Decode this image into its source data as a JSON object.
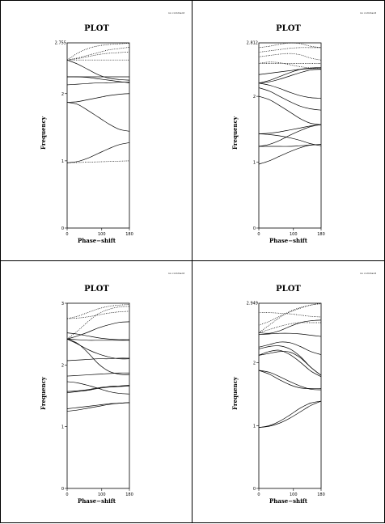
{
  "colors": {
    "ink": "#000000",
    "paper": "#ffffff"
  },
  "chart_data": [
    {
      "type": "line",
      "title": "PLOT",
      "comment": "no comment",
      "xlabel": "Phase−shift",
      "ylabel": "Frequency",
      "xlim": [
        0,
        180
      ],
      "ylim": [
        0,
        2.755
      ],
      "xticks": [
        "0",
        "100",
        "180"
      ],
      "yticks": [
        "0",
        "1",
        "2"
      ],
      "ytop_label": "2.755",
      "x": [
        0,
        30,
        60,
        90,
        120,
        150,
        180
      ],
      "series": [
        {
          "values": [
            0.97,
            0.99,
            1.04,
            1.11,
            1.18,
            1.24,
            1.27
          ],
          "dotted": false
        },
        {
          "values": [
            0.97,
            0.975,
            0.98,
            0.985,
            0.99,
            0.995,
            1.0
          ],
          "dotted": true
        },
        {
          "values": [
            1.87,
            1.84,
            1.75,
            1.65,
            1.55,
            1.47,
            1.44
          ],
          "dotted": false
        },
        {
          "values": [
            1.87,
            1.88,
            1.91,
            1.94,
            1.97,
            1.99,
            2.0
          ],
          "dotted": false
        },
        {
          "values": [
            2.13,
            2.14,
            2.15,
            2.16,
            2.16,
            2.17,
            2.17
          ],
          "dotted": false
        },
        {
          "values": [
            2.25,
            2.25,
            2.24,
            2.22,
            2.2,
            2.18,
            2.16
          ],
          "dotted": false
        },
        {
          "values": [
            2.25,
            2.25,
            2.25,
            2.25,
            2.25,
            2.25,
            2.25
          ],
          "dotted": false
        },
        {
          "values": [
            2.5,
            2.44,
            2.36,
            2.28,
            2.23,
            2.21,
            2.2
          ],
          "dotted": false
        },
        {
          "values": [
            2.5,
            2.5,
            2.5,
            2.5,
            2.5,
            2.5,
            2.5
          ],
          "dotted": true
        },
        {
          "values": [
            2.5,
            2.52,
            2.55,
            2.58,
            2.6,
            2.61,
            2.62
          ],
          "dotted": true
        },
        {
          "values": [
            2.5,
            2.53,
            2.57,
            2.61,
            2.65,
            2.67,
            2.69
          ],
          "dotted": true
        },
        {
          "values": [
            2.5,
            2.6,
            2.67,
            2.71,
            2.73,
            2.74,
            2.75
          ],
          "dotted": true
        }
      ]
    },
    {
      "type": "line",
      "title": "PLOT",
      "comment": "no comment",
      "xlabel": "Phase−shift",
      "ylabel": "Frequency",
      "xlim": [
        0,
        180
      ],
      "ylim": [
        0,
        2.812
      ],
      "xticks": [
        "0",
        "100",
        "180"
      ],
      "yticks": [
        "0",
        "1",
        "2"
      ],
      "ytop_label": "2.812",
      "x": [
        0,
        30,
        60,
        90,
        120,
        150,
        180
      ],
      "series": [
        {
          "values": [
            0.97,
            1.02,
            1.09,
            1.16,
            1.22,
            1.26,
            1.27
          ],
          "dotted": false
        },
        {
          "values": [
            1.24,
            1.24,
            1.24,
            1.24,
            1.25,
            1.26,
            1.27
          ],
          "dotted": false
        },
        {
          "values": [
            1.24,
            1.27,
            1.33,
            1.41,
            1.48,
            1.54,
            1.57
          ],
          "dotted": false
        },
        {
          "values": [
            1.43,
            1.42,
            1.4,
            1.37,
            1.33,
            1.28,
            1.25
          ],
          "dotted": false
        },
        {
          "values": [
            1.43,
            1.44,
            1.46,
            1.49,
            1.52,
            1.55,
            1.57
          ],
          "dotted": false
        },
        {
          "values": [
            2.0,
            1.95,
            1.86,
            1.76,
            1.66,
            1.59,
            1.57
          ],
          "dotted": false
        },
        {
          "values": [
            2.13,
            2.08,
            2.0,
            1.92,
            1.85,
            1.81,
            1.79
          ],
          "dotted": false
        },
        {
          "values": [
            2.2,
            2.17,
            2.12,
            2.06,
            2.01,
            1.98,
            1.97
          ],
          "dotted": false
        },
        {
          "values": [
            2.2,
            2.24,
            2.3,
            2.36,
            2.41,
            2.43,
            2.44
          ],
          "dotted": false
        },
        {
          "values": [
            2.2,
            2.22,
            2.26,
            2.31,
            2.36,
            2.4,
            2.41
          ],
          "dotted": false
        },
        {
          "values": [
            2.33,
            2.35,
            2.37,
            2.39,
            2.41,
            2.42,
            2.42
          ],
          "dotted": false
        },
        {
          "values": [
            2.5,
            2.52,
            2.51,
            2.48,
            2.45,
            2.43,
            2.42
          ],
          "dotted": true
        },
        {
          "values": [
            2.5,
            2.5,
            2.5,
            2.5,
            2.5,
            2.5,
            2.5
          ],
          "dotted": true
        },
        {
          "values": [
            2.6,
            2.62,
            2.64,
            2.65,
            2.63,
            2.58,
            2.55
          ],
          "dotted": true
        },
        {
          "values": [
            2.67,
            2.69,
            2.71,
            2.73,
            2.74,
            2.74,
            2.74
          ],
          "dotted": true
        },
        {
          "values": [
            2.74,
            2.76,
            2.79,
            2.81,
            2.8,
            2.76,
            2.74
          ],
          "dotted": true
        }
      ]
    },
    {
      "type": "line",
      "title": "PLOT",
      "comment": "no comment",
      "xlabel": "Phase−shift",
      "ylabel": "Frequency",
      "xlim": [
        0,
        180
      ],
      "ylim": [
        0,
        3
      ],
      "xticks": [
        "0",
        "100",
        "180"
      ],
      "yticks": [
        "0",
        "1",
        "2",
        "3"
      ],
      "ytop_label": "",
      "x": [
        0,
        30,
        60,
        90,
        120,
        150,
        180
      ],
      "series": [
        {
          "values": [
            1.25,
            1.27,
            1.3,
            1.33,
            1.36,
            1.38,
            1.39
          ],
          "dotted": false
        },
        {
          "values": [
            1.29,
            1.31,
            1.33,
            1.35,
            1.37,
            1.38,
            1.39
          ],
          "dotted": false
        },
        {
          "values": [
            1.55,
            1.57,
            1.59,
            1.62,
            1.64,
            1.65,
            1.66
          ],
          "dotted": false
        },
        {
          "values": [
            1.57,
            1.58,
            1.6,
            1.63,
            1.65,
            1.66,
            1.67
          ],
          "dotted": false
        },
        {
          "values": [
            1.73,
            1.71,
            1.67,
            1.62,
            1.57,
            1.54,
            1.53
          ],
          "dotted": false
        },
        {
          "values": [
            1.82,
            1.83,
            1.84,
            1.85,
            1.86,
            1.87,
            1.87
          ],
          "dotted": false
        },
        {
          "values": [
            2.07,
            2.08,
            2.09,
            2.1,
            2.1,
            2.11,
            2.11
          ],
          "dotted": false
        },
        {
          "values": [
            2.42,
            2.35,
            2.2,
            2.02,
            1.9,
            1.85,
            1.84
          ],
          "dotted": false
        },
        {
          "values": [
            2.42,
            2.34,
            2.25,
            2.18,
            2.13,
            2.1,
            2.1
          ],
          "dotted": false
        },
        {
          "values": [
            2.42,
            2.41,
            2.4,
            2.4,
            2.4,
            2.4,
            2.4
          ],
          "dotted": false
        },
        {
          "values": [
            2.42,
            2.47,
            2.53,
            2.6,
            2.65,
            2.69,
            2.7
          ],
          "dotted": false
        },
        {
          "values": [
            2.52,
            2.5,
            2.47,
            2.44,
            2.42,
            2.41,
            2.41
          ],
          "dotted": false
        },
        {
          "values": [
            2.75,
            2.76,
            2.78,
            2.81,
            2.84,
            2.86,
            2.87
          ],
          "dotted": true
        },
        {
          "values": [
            2.75,
            2.79,
            2.85,
            2.91,
            2.95,
            2.97,
            2.98
          ],
          "dotted": true
        },
        {
          "values": [
            2.42,
            2.55,
            2.7,
            2.83,
            2.9,
            2.94,
            2.95
          ],
          "dotted": true
        }
      ]
    },
    {
      "type": "line",
      "title": "PLOT",
      "comment": "no comment",
      "xlabel": "Phase−shift",
      "ylabel": "Frequency",
      "xlim": [
        0,
        180
      ],
      "ylim": [
        0,
        2.949
      ],
      "xticks": [
        "0",
        "100",
        "180"
      ],
      "yticks": [
        "0",
        "1",
        "2"
      ],
      "ytop_label": "2.949",
      "x": [
        0,
        30,
        60,
        90,
        120,
        150,
        180
      ],
      "series": [
        {
          "values": [
            0.97,
            1.0,
            1.07,
            1.17,
            1.28,
            1.36,
            1.39
          ],
          "dotted": false
        },
        {
          "values": [
            0.97,
            0.99,
            1.04,
            1.12,
            1.22,
            1.32,
            1.39
          ],
          "dotted": false
        },
        {
          "values": [
            1.88,
            1.85,
            1.78,
            1.7,
            1.63,
            1.58,
            1.57
          ],
          "dotted": false
        },
        {
          "values": [
            1.88,
            1.82,
            1.73,
            1.65,
            1.6,
            1.59,
            1.59
          ],
          "dotted": false
        },
        {
          "values": [
            2.12,
            2.15,
            2.18,
            2.17,
            2.08,
            1.93,
            1.8
          ],
          "dotted": false
        },
        {
          "values": [
            2.12,
            2.18,
            2.2,
            2.13,
            2.01,
            1.87,
            1.78
          ],
          "dotted": false
        },
        {
          "values": [
            2.22,
            2.26,
            2.27,
            2.22,
            2.1,
            1.93,
            1.8
          ],
          "dotted": false
        },
        {
          "values": [
            2.25,
            2.29,
            2.33,
            2.32,
            2.26,
            2.18,
            2.13
          ],
          "dotted": false
        },
        {
          "values": [
            2.45,
            2.46,
            2.47,
            2.47,
            2.46,
            2.44,
            2.42
          ],
          "dotted": false
        },
        {
          "values": [
            2.48,
            2.47,
            2.51,
            2.58,
            2.64,
            2.67,
            2.68
          ],
          "dotted": false
        },
        {
          "values": [
            2.48,
            2.53,
            2.58,
            2.62,
            2.64,
            2.64,
            2.64
          ],
          "dotted": true
        },
        {
          "values": [
            2.8,
            2.8,
            2.79,
            2.78,
            2.76,
            2.74,
            2.73
          ],
          "dotted": true
        },
        {
          "values": [
            2.6,
            2.66,
            2.74,
            2.81,
            2.87,
            2.92,
            2.94
          ],
          "dotted": true
        },
        {
          "values": [
            2.48,
            2.6,
            2.72,
            2.82,
            2.88,
            2.92,
            2.95
          ],
          "dotted": true
        }
      ]
    }
  ]
}
